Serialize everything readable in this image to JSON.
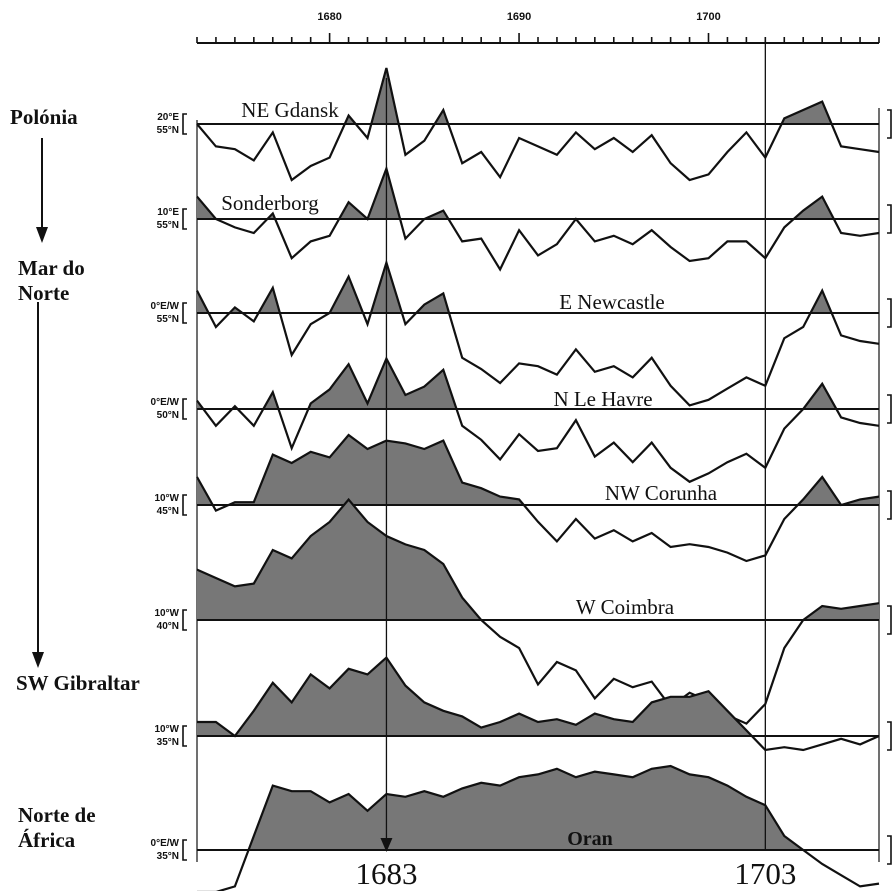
{
  "chart_data": {
    "type": "line",
    "title": "",
    "xlabel": "",
    "ylabel": "",
    "xlim": [
      1673,
      1709
    ],
    "x_tick_labels": [
      "1680",
      "1690",
      "1700"
    ],
    "x_major_ticks": [
      1680,
      1690,
      1700
    ],
    "x_minor_step": 1,
    "highlight_years": [
      "1683",
      "1703"
    ],
    "y_axis_labeled": false,
    "fill_above_baseline": "#777777",
    "region_labels": [
      "Polónia",
      "Mar do\nNorte",
      "SW Gibraltar",
      "Norte de\nÁfrica"
    ],
    "series": [
      {
        "name": "NE Gdansk",
        "coords": [
          "20°E",
          "55°N"
        ],
        "baseline_year": 1673,
        "x": [
          1673,
          1674,
          1675,
          1676,
          1677,
          1678,
          1679,
          1680,
          1681,
          1682,
          1683,
          1684,
          1685,
          1686,
          1687,
          1688,
          1689,
          1690,
          1691,
          1692,
          1693,
          1694,
          1695,
          1696,
          1697,
          1698,
          1699,
          1700,
          1701,
          1702,
          1703,
          1704,
          1705,
          1706,
          1707,
          1708,
          1709
        ],
        "values": [
          0.0,
          -0.8,
          -0.9,
          -1.3,
          -0.3,
          -2.0,
          -1.5,
          -1.2,
          0.3,
          -0.5,
          2.0,
          -1.1,
          -0.6,
          0.5,
          -1.4,
          -1.0,
          -1.9,
          -0.5,
          -0.8,
          -1.1,
          -0.3,
          -0.9,
          -0.5,
          -1.0,
          -0.4,
          -1.4,
          -2.0,
          -1.8,
          -1.0,
          -0.3,
          -1.2,
          0.2,
          0.5,
          0.8,
          -0.8,
          -0.9,
          -1.0
        ]
      },
      {
        "name": "Sonderborg",
        "coords": [
          "10°E",
          "55°N"
        ],
        "baseline_year": 1673,
        "x": [
          1673,
          1674,
          1675,
          1676,
          1677,
          1678,
          1679,
          1680,
          1681,
          1682,
          1683,
          1684,
          1685,
          1686,
          1687,
          1688,
          1689,
          1690,
          1691,
          1692,
          1693,
          1694,
          1695,
          1696,
          1697,
          1698,
          1699,
          1700,
          1701,
          1702,
          1703,
          1704,
          1705,
          1706,
          1707,
          1708,
          1709
        ],
        "values": [
          0.8,
          0.0,
          -0.3,
          -0.5,
          0.2,
          -1.4,
          -0.8,
          -0.6,
          0.6,
          0.0,
          1.8,
          -0.7,
          0.0,
          0.3,
          -0.8,
          -0.7,
          -1.8,
          -0.4,
          -1.3,
          -0.9,
          0.0,
          -0.8,
          -0.6,
          -0.9,
          -0.4,
          -1.0,
          -1.5,
          -1.4,
          -0.8,
          -0.8,
          -1.4,
          -0.3,
          0.3,
          0.8,
          -0.5,
          -0.6,
          -0.5
        ]
      },
      {
        "name": "E Newcastle",
        "coords": [
          "0°E/W",
          "55°N"
        ],
        "baseline_year": 1673,
        "x": [
          1673,
          1674,
          1675,
          1676,
          1677,
          1678,
          1679,
          1680,
          1681,
          1682,
          1683,
          1684,
          1685,
          1686,
          1687,
          1688,
          1689,
          1690,
          1691,
          1692,
          1693,
          1694,
          1695,
          1696,
          1697,
          1698,
          1699,
          1700,
          1701,
          1702,
          1703,
          1704,
          1705,
          1706,
          1707,
          1708,
          1709
        ],
        "values": [
          0.8,
          -0.5,
          0.2,
          -0.3,
          0.9,
          -1.5,
          -0.4,
          0.0,
          1.3,
          -0.4,
          1.8,
          -0.4,
          0.3,
          0.7,
          -1.6,
          -2.0,
          -2.5,
          -1.8,
          -1.9,
          -2.2,
          -1.3,
          -2.1,
          -1.9,
          -2.3,
          -1.6,
          -2.6,
          -3.3,
          -3.1,
          -2.7,
          -2.3,
          -2.6,
          -0.9,
          -0.5,
          0.8,
          -0.8,
          -1.0,
          -1.1
        ]
      },
      {
        "name": "N Le Havre",
        "coords": [
          "0°E/W",
          "50°N"
        ],
        "baseline_year": 1673,
        "x": [
          1673,
          1674,
          1675,
          1676,
          1677,
          1678,
          1679,
          1680,
          1681,
          1682,
          1683,
          1684,
          1685,
          1686,
          1687,
          1688,
          1689,
          1690,
          1691,
          1692,
          1693,
          1694,
          1695,
          1696,
          1697,
          1698,
          1699,
          1700,
          1701,
          1702,
          1703,
          1704,
          1705,
          1706,
          1707,
          1708,
          1709
        ],
        "values": [
          0.3,
          -0.6,
          0.1,
          -0.6,
          0.6,
          -1.4,
          0.2,
          0.7,
          1.6,
          0.2,
          1.8,
          0.5,
          0.8,
          1.4,
          -0.6,
          -1.1,
          -1.8,
          -0.9,
          -1.5,
          -1.4,
          -0.4,
          -1.7,
          -1.2,
          -1.9,
          -1.2,
          -2.1,
          -2.6,
          -2.3,
          -1.9,
          -1.6,
          -2.1,
          -0.7,
          0.0,
          0.9,
          -0.3,
          -0.5,
          -0.6
        ]
      },
      {
        "name": "NW Corunha",
        "coords": [
          "10°W",
          "45°N"
        ],
        "baseline_year": 1673,
        "x": [
          1673,
          1674,
          1675,
          1676,
          1677,
          1678,
          1679,
          1680,
          1681,
          1682,
          1683,
          1684,
          1685,
          1686,
          1687,
          1688,
          1689,
          1690,
          1691,
          1692,
          1693,
          1694,
          1695,
          1696,
          1697,
          1698,
          1699,
          1700,
          1701,
          1702,
          1703,
          1704,
          1705,
          1706,
          1707,
          1708,
          1709
        ],
        "values": [
          1.0,
          -0.2,
          0.1,
          0.1,
          1.8,
          1.5,
          1.9,
          1.7,
          2.5,
          2.0,
          2.3,
          2.2,
          2.0,
          2.3,
          0.8,
          0.6,
          0.3,
          0.2,
          -0.6,
          -1.3,
          -0.5,
          -1.2,
          -0.9,
          -1.3,
          -1.0,
          -1.5,
          -1.4,
          -1.5,
          -1.7,
          -2.0,
          -1.8,
          -0.5,
          0.2,
          1.0,
          0.0,
          0.2,
          0.3
        ]
      },
      {
        "name": "W Coimbra",
        "coords": [
          "10°W",
          "40°N"
        ],
        "baseline_year": 1673,
        "x": [
          1673,
          1674,
          1675,
          1676,
          1677,
          1678,
          1679,
          1680,
          1681,
          1682,
          1683,
          1684,
          1685,
          1686,
          1687,
          1688,
          1689,
          1690,
          1691,
          1692,
          1693,
          1694,
          1695,
          1696,
          1697,
          1698,
          1699,
          1700,
          1701,
          1702,
          1703,
          1704,
          1705,
          1706,
          1707,
          1708,
          1709
        ],
        "values": [
          1.8,
          1.5,
          1.2,
          1.3,
          2.5,
          2.2,
          3.0,
          3.5,
          4.3,
          3.5,
          3.0,
          2.7,
          2.5,
          2.0,
          0.8,
          0.0,
          -0.6,
          -1.0,
          -2.3,
          -1.5,
          -1.8,
          -2.8,
          -2.1,
          -2.4,
          -2.2,
          -3.1,
          -2.6,
          -2.9,
          -3.4,
          -3.7,
          -3.0,
          -1.0,
          0.0,
          0.5,
          0.4,
          0.5,
          0.6
        ]
      },
      {
        "name": "SW Gibraltar",
        "coords": [
          "10°W",
          "35°N"
        ],
        "baseline_year": 1673,
        "x": [
          1673,
          1674,
          1675,
          1676,
          1677,
          1678,
          1679,
          1680,
          1681,
          1682,
          1683,
          1684,
          1685,
          1686,
          1687,
          1688,
          1689,
          1690,
          1691,
          1692,
          1693,
          1694,
          1695,
          1696,
          1697,
          1698,
          1699,
          1700,
          1701,
          1702,
          1703,
          1704,
          1705,
          1706,
          1707,
          1708,
          1709
        ],
        "values": [
          0.5,
          0.5,
          0.0,
          0.9,
          1.9,
          1.2,
          2.2,
          1.7,
          2.4,
          2.2,
          2.8,
          1.8,
          1.2,
          0.9,
          0.7,
          0.3,
          0.5,
          0.8,
          0.5,
          0.6,
          0.4,
          0.8,
          0.6,
          0.5,
          1.2,
          1.4,
          1.4,
          1.6,
          0.9,
          0.2,
          -0.5,
          -0.4,
          -0.5,
          -0.3,
          -0.1,
          -0.3,
          0.0
        ]
      },
      {
        "name": "Oran",
        "coords": [
          "0°E/W",
          "35°N"
        ],
        "baseline_year": 1673,
        "x": [
          1673,
          1674,
          1675,
          1676,
          1677,
          1678,
          1679,
          1680,
          1681,
          1682,
          1683,
          1684,
          1685,
          1686,
          1687,
          1688,
          1689,
          1690,
          1691,
          1692,
          1693,
          1694,
          1695,
          1696,
          1697,
          1698,
          1699,
          1700,
          1701,
          1702,
          1703,
          1704,
          1705,
          1706,
          1707,
          1708,
          1709
        ],
        "values": [
          -1.5,
          -1.5,
          -1.3,
          0.5,
          2.3,
          2.1,
          2.1,
          1.7,
          2.0,
          1.4,
          2.0,
          1.9,
          2.1,
          1.9,
          2.2,
          2.4,
          2.3,
          2.6,
          2.7,
          2.9,
          2.6,
          2.8,
          2.7,
          2.6,
          2.9,
          3.0,
          2.7,
          2.6,
          2.3,
          1.9,
          1.6,
          0.5,
          0.0,
          -0.5,
          -0.9,
          -1.3,
          -1.2
        ]
      }
    ]
  }
}
